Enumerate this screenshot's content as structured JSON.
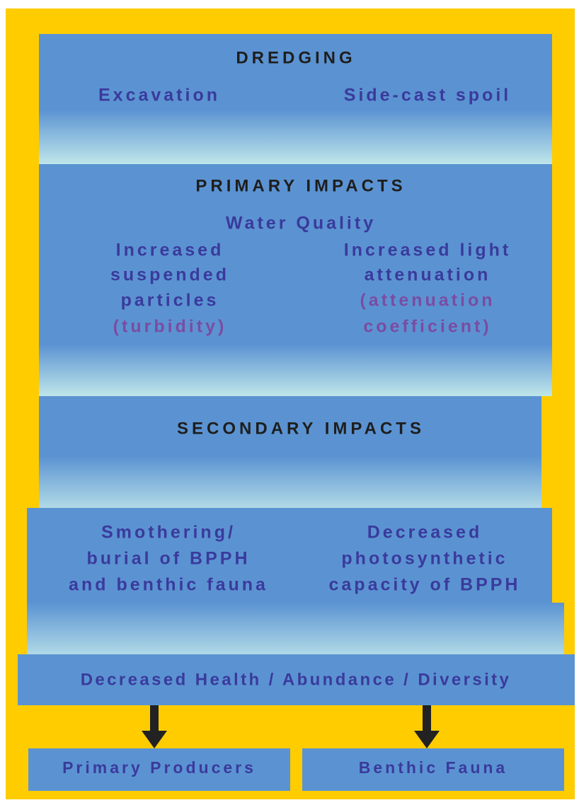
{
  "dredging": {
    "title": "DREDGING",
    "items": [
      "Excavation",
      "Side-cast spoil"
    ]
  },
  "primary_impacts": {
    "title": "PRIMARY IMPACTS",
    "subtitle": "Water Quality",
    "left": {
      "lines": [
        "Increased",
        "suspended",
        "particles"
      ],
      "note": "(turbidity)"
    },
    "right": {
      "lines": [
        "Increased light",
        "attenuation"
      ],
      "note_lines": [
        "(attenuation",
        "coefficient)"
      ]
    }
  },
  "secondary_impacts": {
    "title": "SECONDARY IMPACTS",
    "left": [
      "Smothering/",
      "burial of BPPH",
      "and benthic fauna"
    ],
    "right": [
      "Decreased",
      "photosynthetic",
      "capacity of BPPH"
    ]
  },
  "outcome": "Decreased Health / Abundance / Diversity",
  "targets": [
    "Primary Producers",
    "Benthic Fauna"
  ]
}
